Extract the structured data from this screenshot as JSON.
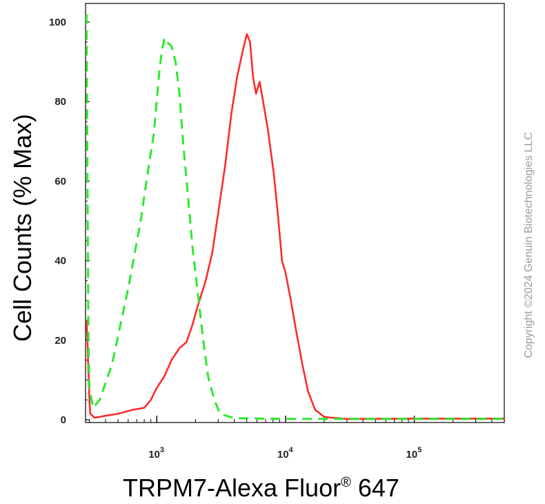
{
  "chart_data": {
    "type": "line",
    "x_scale": "log",
    "xlim": [
      280,
      500000
    ],
    "ylim": [
      0,
      105
    ],
    "ylabel": "Cell Counts (% Max)",
    "xlabel": {
      "main": "TRPM7-Alexa Fluor",
      "superscript": "®",
      "suffix": " 647"
    },
    "yticks": [
      {
        "value": 0,
        "label": "0"
      },
      {
        "value": 20,
        "label": "20"
      },
      {
        "value": 40,
        "label": "40"
      },
      {
        "value": 60,
        "label": "60"
      },
      {
        "value": 80,
        "label": "80"
      },
      {
        "value": 100,
        "label": "100"
      }
    ],
    "xticks": [
      {
        "value": 1000,
        "base": "10",
        "exp": "3"
      },
      {
        "value": 10000,
        "base": "10",
        "exp": "4"
      },
      {
        "value": 100000,
        "base": "10",
        "exp": "5"
      }
    ],
    "grid": false,
    "legend": "none",
    "series": [
      {
        "color": "#ff2a2a",
        "style": "solid",
        "points": [
          [
            285,
            25
          ],
          [
            290,
            20
          ],
          [
            295,
            12
          ],
          [
            300,
            5
          ],
          [
            305,
            1.5
          ],
          [
            330,
            0.5
          ],
          [
            400,
            1
          ],
          [
            500,
            1.5
          ],
          [
            650,
            2.5
          ],
          [
            800,
            3
          ],
          [
            900,
            5
          ],
          [
            1000,
            8
          ],
          [
            1150,
            11
          ],
          [
            1300,
            15
          ],
          [
            1500,
            18
          ],
          [
            1700,
            19.5
          ],
          [
            1900,
            24
          ],
          [
            2100,
            29
          ],
          [
            2400,
            35
          ],
          [
            2700,
            42
          ],
          [
            3000,
            52
          ],
          [
            3400,
            64
          ],
          [
            3800,
            77
          ],
          [
            4200,
            86
          ],
          [
            4600,
            92
          ],
          [
            5000,
            97
          ],
          [
            5300,
            95
          ],
          [
            5600,
            86
          ],
          [
            5900,
            82
          ],
          [
            6300,
            85
          ],
          [
            6700,
            80
          ],
          [
            7300,
            73
          ],
          [
            8100,
            62
          ],
          [
            8700,
            52
          ],
          [
            9400,
            40
          ],
          [
            10000,
            37
          ],
          [
            11000,
            30
          ],
          [
            12000,
            23
          ],
          [
            13500,
            14
          ],
          [
            15000,
            7
          ],
          [
            17000,
            2.5
          ],
          [
            20000,
            0.7
          ],
          [
            30000,
            0.2
          ],
          [
            100000,
            0.3
          ],
          [
            500000,
            0.3
          ]
        ]
      },
      {
        "color": "#2ee82e",
        "style": "dashed",
        "points": [
          [
            285,
            102
          ],
          [
            290,
            60
          ],
          [
            295,
            20
          ],
          [
            300,
            8
          ],
          [
            320,
            3
          ],
          [
            360,
            5
          ],
          [
            450,
            14
          ],
          [
            600,
            33
          ],
          [
            750,
            50
          ],
          [
            850,
            62
          ],
          [
            950,
            72
          ],
          [
            1050,
            88
          ],
          [
            1100,
            93
          ],
          [
            1150,
            96
          ],
          [
            1200,
            95
          ],
          [
            1300,
            94
          ],
          [
            1400,
            90
          ],
          [
            1500,
            82
          ],
          [
            1600,
            70
          ],
          [
            1750,
            56
          ],
          [
            1900,
            43
          ],
          [
            2100,
            31
          ],
          [
            2300,
            20
          ],
          [
            2500,
            11
          ],
          [
            2800,
            5
          ],
          [
            3100,
            1.5
          ],
          [
            4000,
            0.4
          ],
          [
            10000,
            0.2
          ],
          [
            30000,
            0.2
          ],
          [
            500000,
            0.2
          ]
        ]
      }
    ]
  },
  "watermark": "Copyright ©2024 Genuin Biotechnologies LLC"
}
